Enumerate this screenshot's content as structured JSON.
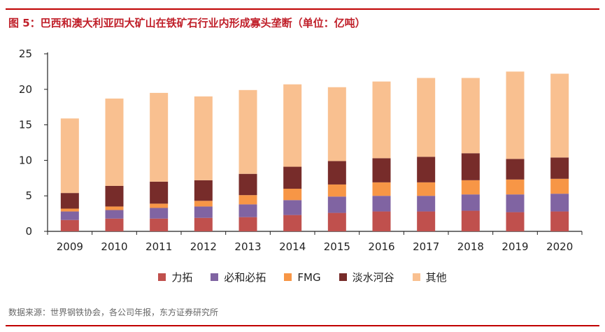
{
  "title": "图 5：巴西和澳大利亚四大矿山在铁矿石行业内形成寡头垄断（单位：亿吨）",
  "source": "数据来源：世界钢铁协会，各公司年报，东方证券研究所",
  "chart_data": {
    "type": "bar",
    "stacked": true,
    "title": "图 5：巴西和澳大利亚四大矿山在铁矿石行业内形成寡头垄断（单位：亿吨）",
    "xlabel": "",
    "ylabel": "",
    "ylim": [
      0,
      25
    ],
    "yticks": [
      "0",
      "5",
      "10",
      "15",
      "20",
      "25"
    ],
    "grid": false,
    "legend_position": "bottom",
    "categories": [
      "2009",
      "2010",
      "2011",
      "2012",
      "2013",
      "2014",
      "2015",
      "2016",
      "2017",
      "2018",
      "2019",
      "2020"
    ],
    "series": [
      {
        "name": "力拓",
        "color": "#c0504d",
        "values": [
          1.6,
          1.8,
          1.8,
          1.9,
          2.0,
          2.3,
          2.6,
          2.8,
          2.8,
          2.9,
          2.7,
          2.8
        ]
      },
      {
        "name": "必和必拓",
        "color": "#8064a2",
        "values": [
          1.2,
          1.2,
          1.5,
          1.6,
          1.8,
          2.1,
          2.3,
          2.2,
          2.2,
          2.3,
          2.5,
          2.5
        ]
      },
      {
        "name": "FMG",
        "color": "#f79646",
        "values": [
          0.4,
          0.5,
          0.6,
          0.8,
          1.3,
          1.6,
          1.7,
          1.9,
          1.9,
          2.0,
          2.1,
          2.1
        ]
      },
      {
        "name": "淡水河谷",
        "color": "#772c2a",
        "values": [
          2.2,
          2.9,
          3.1,
          2.9,
          3.0,
          3.1,
          3.3,
          3.4,
          3.6,
          3.8,
          2.9,
          3.0
        ]
      },
      {
        "name": "其他",
        "color": "#f9c090",
        "values": [
          10.5,
          12.3,
          12.5,
          11.8,
          11.8,
          11.6,
          10.4,
          10.8,
          11.1,
          10.6,
          12.3,
          11.8
        ]
      }
    ]
  }
}
